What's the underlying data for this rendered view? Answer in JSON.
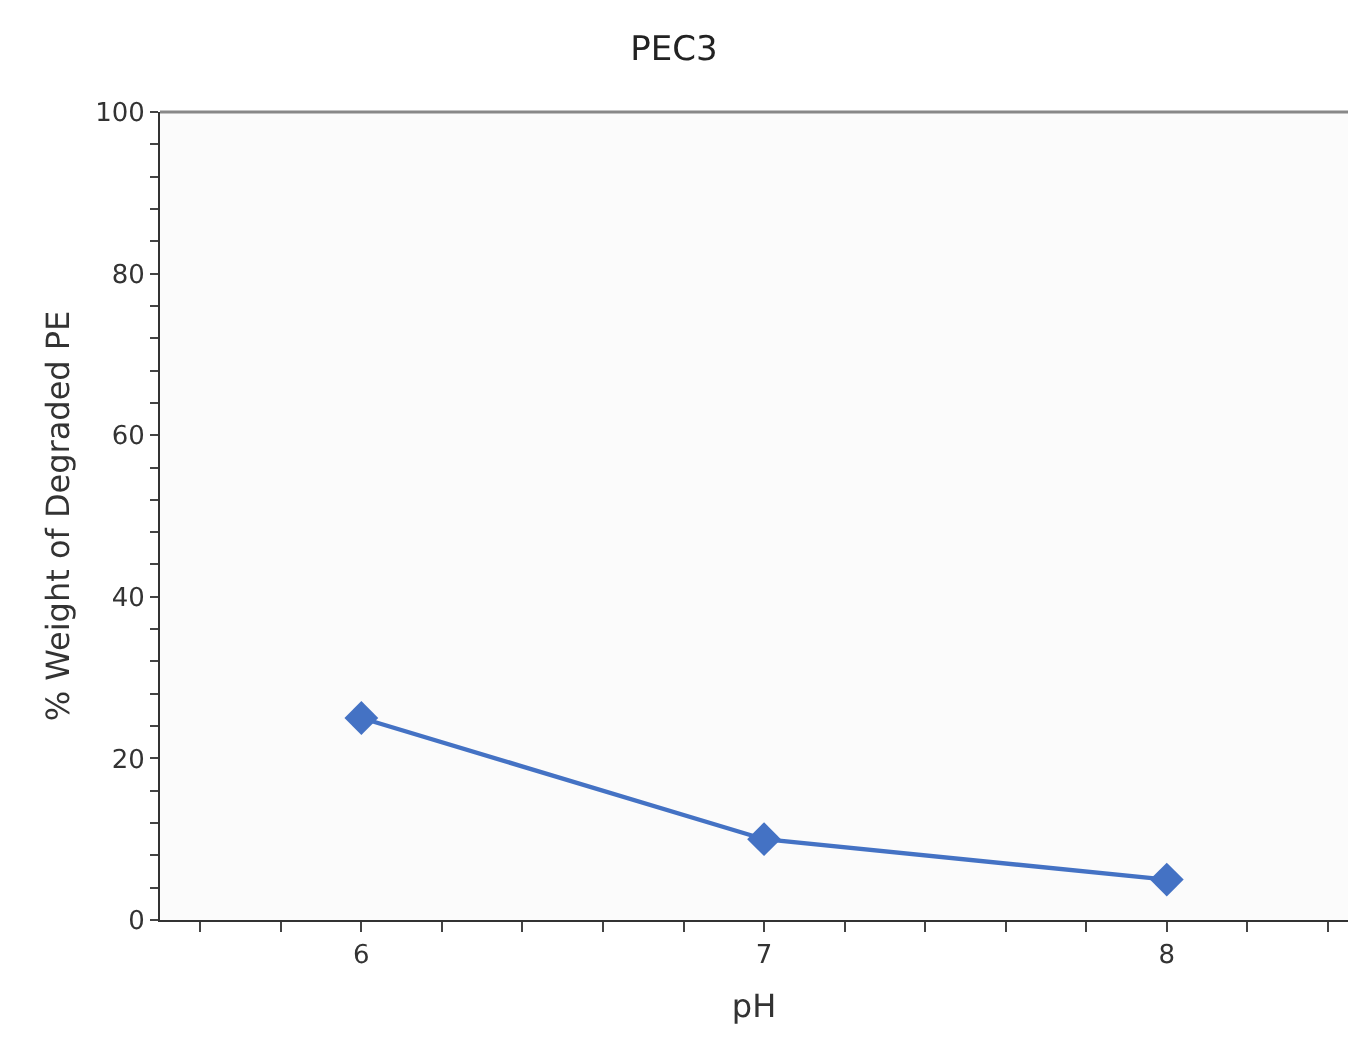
{
  "chart_data": {
    "type": "line",
    "title": "PEC3",
    "xlabel": "pH",
    "ylabel": "% Weight of Degraded PE",
    "x": [
      6,
      7,
      8
    ],
    "series": [
      {
        "color": "#4472c4",
        "values": [
          25,
          10,
          5
        ]
      }
    ],
    "xlim": [
      5.5,
      8.45
    ],
    "xticks": [
      {
        "value": 5.6,
        "label": null
      },
      {
        "value": 5.8,
        "label": null
      },
      6,
      {
        "value": 6.2,
        "label": null
      },
      {
        "value": 6.4,
        "label": null
      },
      {
        "value": 6.6,
        "label": null
      },
      {
        "value": 6.8,
        "label": null
      },
      7,
      {
        "value": 7.2,
        "label": null
      },
      {
        "value": 7.4,
        "label": null
      },
      {
        "value": 7.6,
        "label": null
      },
      {
        "value": 7.8,
        "label": null
      },
      8,
      {
        "value": 8.2,
        "label": null
      },
      {
        "value": 8.4,
        "label": null
      }
    ],
    "ylim": [
      0,
      100
    ],
    "yticks": [
      0,
      {
        "value": 4,
        "label": null
      },
      {
        "value": 8,
        "label": null
      },
      {
        "value": 12,
        "label": null
      },
      {
        "value": 16,
        "label": null
      },
      20,
      {
        "value": 24,
        "label": null
      },
      {
        "value": 28,
        "label": null
      },
      {
        "value": 32,
        "label": null
      },
      {
        "value": 36,
        "label": null
      },
      40,
      {
        "value": 44,
        "label": null
      },
      {
        "value": 48,
        "label": null
      },
      {
        "value": 52,
        "label": null
      },
      {
        "value": 56,
        "label": null
      },
      60,
      {
        "value": 64,
        "label": null
      },
      {
        "value": 68,
        "label": null
      },
      {
        "value": 72,
        "label": null
      },
      {
        "value": 76,
        "label": null
      },
      80,
      {
        "value": 84,
        "label": null
      },
      {
        "value": 88,
        "label": null
      },
      {
        "value": 92,
        "label": null
      },
      {
        "value": 96,
        "label": null
      },
      100
    ],
    "marker": "diamond",
    "line_style": "solid"
  }
}
